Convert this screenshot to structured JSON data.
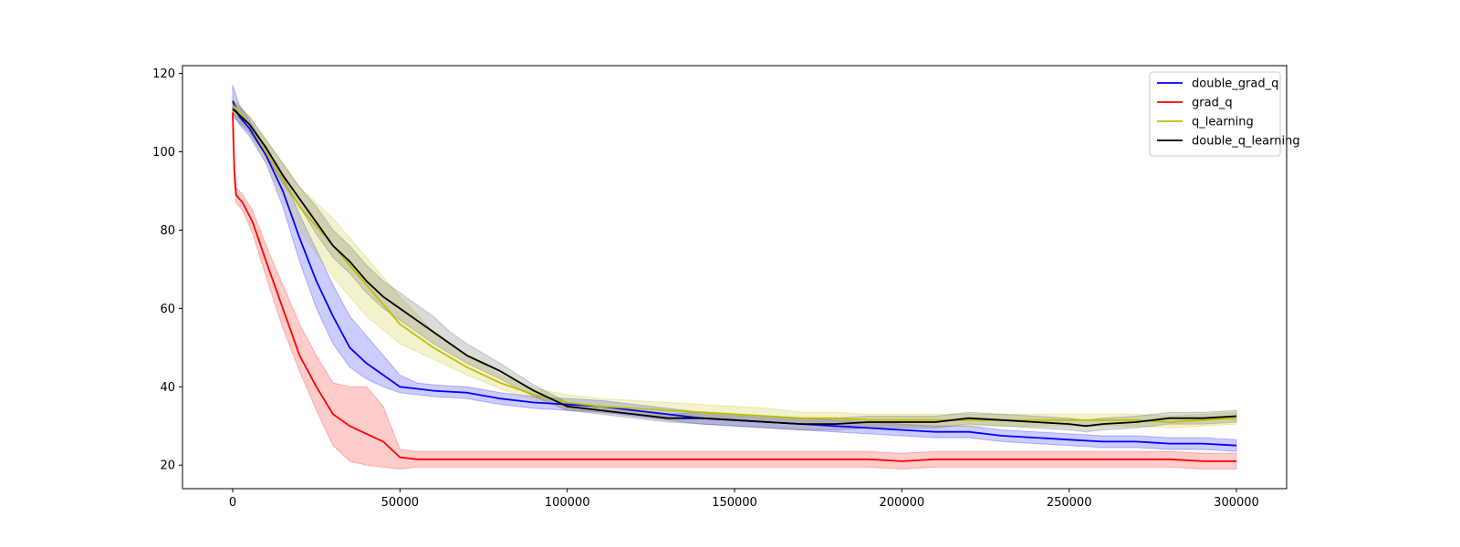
{
  "chart_data": {
    "type": "line",
    "title": "",
    "xlabel": "",
    "ylabel": "",
    "xlim": [
      -15000,
      315000
    ],
    "ylim": [
      14,
      122
    ],
    "xticks": [
      0,
      50000,
      100000,
      150000,
      200000,
      250000,
      300000
    ],
    "yticks": [
      20,
      40,
      60,
      80,
      100,
      120
    ],
    "grid": false,
    "legend_position": "top-right",
    "series": [
      {
        "name": "double_grad_q",
        "color": "#0000ff",
        "band_color": "#0000ff",
        "x": [
          0,
          2000,
          5000,
          10000,
          15000,
          20000,
          25000,
          30000,
          35000,
          40000,
          45000,
          50000,
          55000,
          60000,
          70000,
          80000,
          90000,
          100000,
          110000,
          120000,
          130000,
          140000,
          150000,
          160000,
          170000,
          180000,
          190000,
          200000,
          210000,
          220000,
          230000,
          240000,
          250000,
          260000,
          270000,
          280000,
          290000,
          300000
        ],
        "y": [
          113,
          109,
          106,
          99,
          90,
          78,
          67,
          58,
          50,
          46,
          43,
          40,
          39.5,
          39,
          38.5,
          37,
          36,
          35.5,
          35,
          34,
          33,
          32,
          31.5,
          31,
          30.5,
          30,
          29.5,
          29,
          28.5,
          28.5,
          27.5,
          27,
          26.5,
          26,
          26,
          25.5,
          25.5,
          25
        ],
        "lower": [
          110,
          107,
          104,
          97,
          86,
          72,
          60,
          51,
          45,
          42,
          40,
          38.5,
          38,
          37.5,
          37,
          35.5,
          34.5,
          34,
          33.5,
          32.5,
          31.5,
          30.5,
          30,
          29.5,
          29,
          28.5,
          28,
          27.5,
          27,
          27,
          26,
          25.5,
          25,
          24.5,
          24.5,
          24,
          24,
          23.5
        ],
        "upper": [
          117,
          112,
          108,
          101,
          94,
          84,
          75,
          66,
          58,
          53,
          48,
          43,
          41,
          40.5,
          40,
          38.5,
          37.5,
          37,
          36.5,
          35.5,
          34.5,
          33.5,
          33,
          32.5,
          32,
          31.5,
          31,
          30.5,
          30,
          30,
          29,
          28.5,
          28,
          27.5,
          27.5,
          27,
          27,
          26.5
        ]
      },
      {
        "name": "grad_q",
        "color": "#ff0000",
        "band_color": "#ff0000",
        "x": [
          0,
          500,
          1000,
          3000,
          6000,
          10000,
          15000,
          20000,
          25000,
          30000,
          35000,
          40000,
          45000,
          50000,
          55000,
          60000,
          70000,
          80000,
          90000,
          100000,
          110000,
          120000,
          130000,
          140000,
          150000,
          160000,
          170000,
          180000,
          190000,
          200000,
          210000,
          220000,
          230000,
          240000,
          250000,
          260000,
          270000,
          280000,
          290000,
          300000
        ],
        "y": [
          110,
          95,
          89,
          87,
          82,
          72,
          60,
          48,
          40,
          33,
          30,
          28,
          26,
          22,
          21.5,
          21.5,
          21.5,
          21.5,
          21.5,
          21.5,
          21.5,
          21.5,
          21.5,
          21.5,
          21.5,
          21.5,
          21.5,
          21.5,
          21.5,
          21,
          21.5,
          21.5,
          21.5,
          21.5,
          21.5,
          21.5,
          21.5,
          21.5,
          21,
          21
        ],
        "lower": [
          106,
          92,
          87,
          85,
          79,
          68,
          55,
          44,
          34,
          25,
          21,
          20,
          19.5,
          19,
          19.5,
          19.5,
          19.5,
          19.5,
          19.5,
          19.5,
          19.5,
          19.5,
          19.5,
          19.5,
          19.5,
          19.5,
          19.5,
          19.5,
          19.5,
          19,
          19.5,
          19.5,
          19.5,
          19.5,
          19.5,
          19.5,
          19.5,
          19.5,
          19,
          19
        ],
        "upper": [
          113,
          98,
          91,
          89,
          85,
          76,
          66,
          56,
          48,
          41,
          40,
          40,
          35,
          24,
          23.5,
          23.5,
          23.5,
          23.5,
          23.5,
          23.5,
          23.5,
          23.5,
          23.5,
          23.5,
          23.5,
          23.5,
          23.5,
          23.5,
          23.5,
          23,
          23.5,
          23.5,
          23.5,
          23.5,
          23.5,
          23.5,
          23.5,
          23.5,
          23,
          23
        ]
      },
      {
        "name": "q_learning",
        "color": "#bfbf00",
        "band_color": "#bfbf00",
        "x": [
          0,
          5000,
          10000,
          20000,
          30000,
          40000,
          50000,
          60000,
          70000,
          80000,
          90000,
          100000,
          110000,
          120000,
          130000,
          140000,
          150000,
          160000,
          170000,
          180000,
          190000,
          200000,
          210000,
          220000,
          230000,
          240000,
          250000,
          260000,
          270000,
          280000,
          290000,
          300000
        ],
        "y": [
          112,
          107,
          100,
          86,
          76,
          66,
          56,
          50,
          45,
          41,
          38,
          36,
          35,
          34.5,
          34,
          33.5,
          33,
          32.5,
          32,
          32,
          31.5,
          31.5,
          31.5,
          31.5,
          31.5,
          31.5,
          31.5,
          31.5,
          31.5,
          31,
          31.5,
          32
        ],
        "lower": [
          110,
          105,
          97,
          80,
          68,
          58,
          51,
          47,
          43,
          39.5,
          36.5,
          34.5,
          33.5,
          33,
          32.5,
          32,
          31.5,
          31,
          30.5,
          30.5,
          30,
          30,
          30,
          30,
          30,
          30,
          30,
          30,
          30,
          29.5,
          30,
          30.5
        ],
        "upper": [
          114,
          109,
          103,
          91,
          83,
          73,
          63,
          54,
          48,
          43,
          39.5,
          38,
          37,
          36.5,
          36,
          35.5,
          35,
          34.5,
          33.5,
          33.5,
          33,
          33,
          33,
          33,
          33,
          33,
          33,
          33,
          33,
          32.5,
          33,
          33.5
        ]
      },
      {
        "name": "double_q_learning",
        "color": "#000000",
        "band_color": "#4d4d4d",
        "x": [
          0,
          5000,
          10000,
          15000,
          20000,
          25000,
          30000,
          35000,
          40000,
          45000,
          50000,
          55000,
          60000,
          65000,
          70000,
          75000,
          80000,
          90000,
          100000,
          110000,
          120000,
          130000,
          140000,
          150000,
          160000,
          170000,
          180000,
          190000,
          200000,
          210000,
          220000,
          230000,
          240000,
          250000,
          255000,
          260000,
          270000,
          280000,
          290000,
          300000
        ],
        "y": [
          111,
          107,
          101,
          94,
          88,
          82,
          76,
          72,
          67,
          63,
          60,
          57,
          54,
          51,
          48,
          46,
          44,
          39,
          35,
          34,
          33,
          32,
          32,
          31.5,
          31,
          30.5,
          30.5,
          31,
          31,
          31,
          32,
          31.5,
          31,
          30.5,
          30,
          30.5,
          31,
          32,
          32,
          32.5
        ],
        "lower": [
          109,
          105,
          99,
          92,
          86,
          79,
          73,
          69,
          64,
          60,
          57,
          54,
          51,
          48.5,
          46,
          44,
          42,
          37.5,
          34,
          33,
          32,
          31,
          30.5,
          30,
          29.5,
          29,
          29,
          29.5,
          29.5,
          29.5,
          30.5,
          30,
          29.5,
          29,
          28.5,
          29,
          29.5,
          30.5,
          30.5,
          31
        ],
        "upper": [
          113,
          109,
          103,
          97,
          91,
          86,
          80,
          76,
          71,
          67,
          64,
          61,
          58,
          54,
          51,
          48.5,
          46,
          40.5,
          36,
          35,
          34,
          33,
          33.5,
          33,
          32.5,
          32,
          32,
          32.5,
          32.5,
          32.5,
          33.5,
          33,
          32.5,
          32,
          31.5,
          32,
          32.5,
          33.5,
          33.5,
          34
        ]
      }
    ]
  }
}
